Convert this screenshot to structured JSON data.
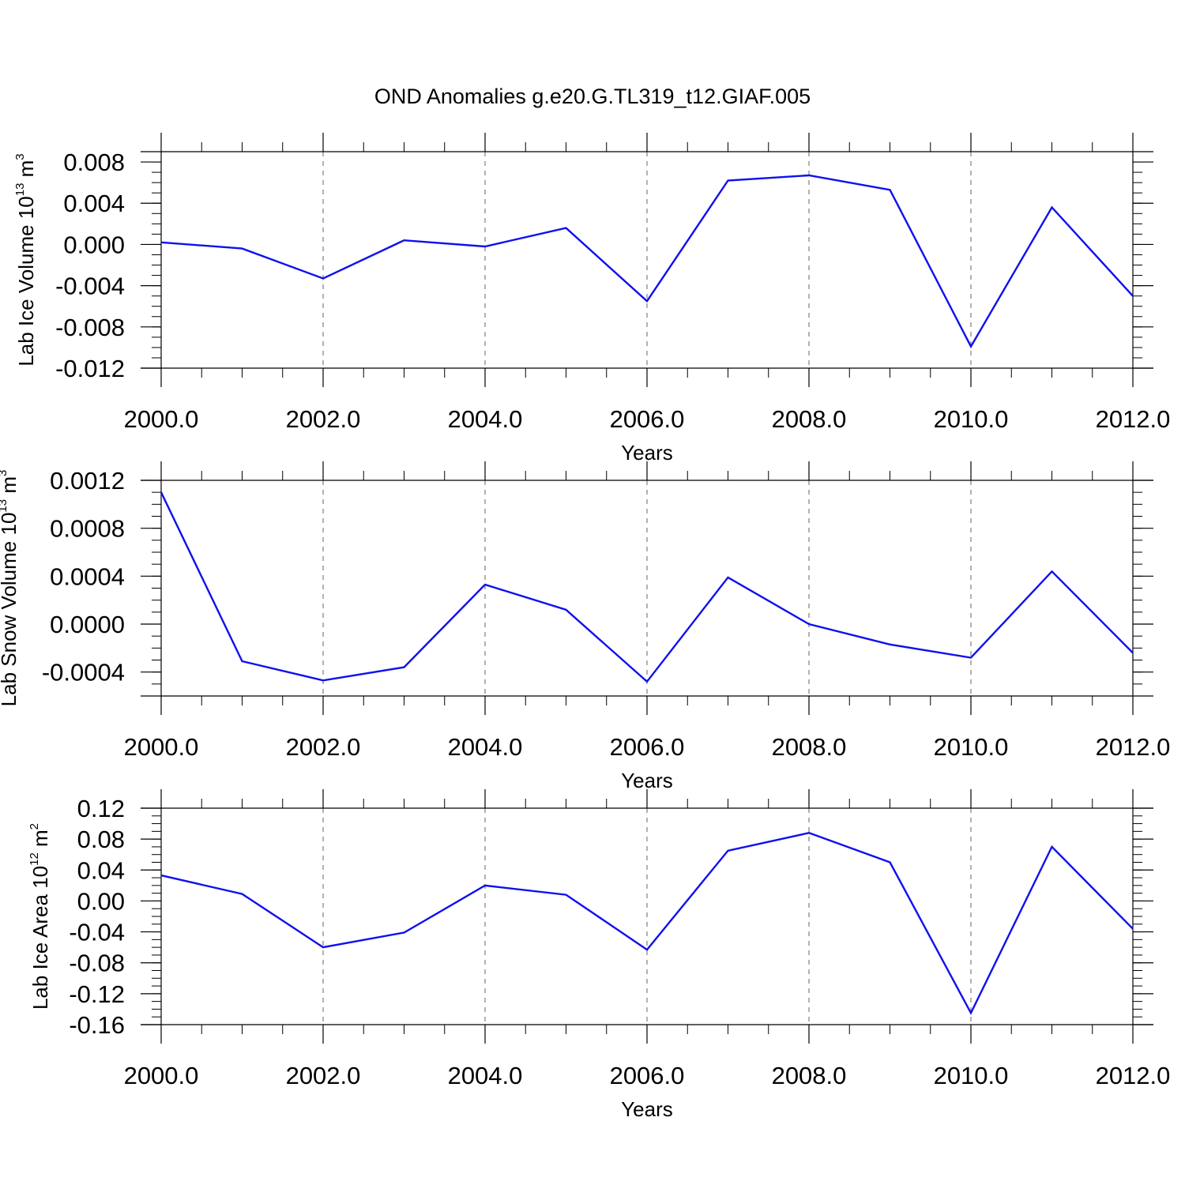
{
  "title": "OND Anomalies g.e20.G.TL319_t12.GIAF.005",
  "chart_data": [
    {
      "type": "line",
      "title": "OND Anomalies g.e20.G.TL319_t12.GIAF.005",
      "xlabel": "Years",
      "ylabel": {
        "main": "Lab Ice Volume 10",
        "sup1": "13",
        "unit": " m",
        "sup2": "3"
      },
      "xlim": [
        2000,
        2012
      ],
      "ylim": [
        -0.012,
        0.009
      ],
      "x_ticks": [
        2000,
        2002,
        2004,
        2006,
        2008,
        2010,
        2012
      ],
      "x_tick_labels": [
        "2000.0",
        "2002.0",
        "2004.0",
        "2006.0",
        "2008.0",
        "2010.0",
        "2012.0"
      ],
      "y_ticks": [
        -0.012,
        -0.008,
        -0.004,
        0.0,
        0.004,
        0.008
      ],
      "y_tick_labels": [
        "-0.012",
        "-0.008",
        "-0.004",
        "0.000",
        "0.004",
        "0.008"
      ],
      "y_minor_step": 0.001,
      "grid": "vertical-dashed",
      "series": [
        {
          "color": "#1010ee",
          "x": [
            2000,
            2001,
            2002,
            2003,
            2004,
            2005,
            2006,
            2007,
            2008,
            2009,
            2010,
            2011,
            2012
          ],
          "y": [
            0.0002,
            -0.0004,
            -0.0033,
            0.0004,
            -0.0002,
            0.0016,
            -0.0055,
            0.0062,
            0.0067,
            0.0053,
            -0.0099,
            0.0036,
            -0.005
          ]
        }
      ]
    },
    {
      "type": "line",
      "xlabel": "Years",
      "ylabel": {
        "main": "Lab Snow Volume 10",
        "sup1": "13",
        "unit": " m",
        "sup2": "3"
      },
      "xlim": [
        2000,
        2012
      ],
      "ylim": [
        -0.0006,
        0.0012
      ],
      "x_ticks": [
        2000,
        2002,
        2004,
        2006,
        2008,
        2010,
        2012
      ],
      "x_tick_labels": [
        "2000.0",
        "2002.0",
        "2004.0",
        "2006.0",
        "2008.0",
        "2010.0",
        "2012.0"
      ],
      "y_ticks": [
        -0.0004,
        0.0,
        0.0004,
        0.0008,
        0.0012
      ],
      "y_tick_labels": [
        "-0.0004",
        "0.0000",
        "0.0004",
        "0.0008",
        "0.0012"
      ],
      "y_minor_step": 0.0001,
      "grid": "vertical-dashed",
      "series": [
        {
          "color": "#1010ee",
          "x": [
            2000,
            2001,
            2002,
            2003,
            2004,
            2005,
            2006,
            2007,
            2008,
            2009,
            2010,
            2011,
            2012
          ],
          "y": [
            0.0011,
            -0.00031,
            -0.00047,
            -0.00036,
            0.00033,
            0.00012,
            -0.00048,
            0.00039,
            0.0,
            -0.00017,
            -0.00028,
            0.00044,
            -0.00024
          ]
        }
      ]
    },
    {
      "type": "line",
      "xlabel": "Years",
      "ylabel": {
        "main": "Lab Ice Area 10",
        "sup1": "12",
        "unit": " m",
        "sup2": "2"
      },
      "xlim": [
        2000,
        2012
      ],
      "ylim": [
        -0.16,
        0.12
      ],
      "x_ticks": [
        2000,
        2002,
        2004,
        2006,
        2008,
        2010,
        2012
      ],
      "x_tick_labels": [
        "2000.0",
        "2002.0",
        "2004.0",
        "2006.0",
        "2008.0",
        "2010.0",
        "2012.0"
      ],
      "y_ticks": [
        -0.16,
        -0.12,
        -0.08,
        -0.04,
        0.0,
        0.04,
        0.08,
        0.12
      ],
      "y_tick_labels": [
        "-0.16",
        "-0.12",
        "-0.08",
        "-0.04",
        "0.00",
        "0.04",
        "0.08",
        "0.12"
      ],
      "y_minor_step": 0.01,
      "grid": "vertical-dashed",
      "series": [
        {
          "color": "#1010ee",
          "x": [
            2000,
            2001,
            2002,
            2003,
            2004,
            2005,
            2006,
            2007,
            2008,
            2009,
            2010,
            2011,
            2012
          ],
          "y": [
            0.033,
            0.009,
            -0.06,
            -0.041,
            0.02,
            0.008,
            -0.063,
            0.065,
            0.088,
            0.05,
            -0.145,
            0.07,
            -0.036
          ]
        }
      ]
    }
  ]
}
